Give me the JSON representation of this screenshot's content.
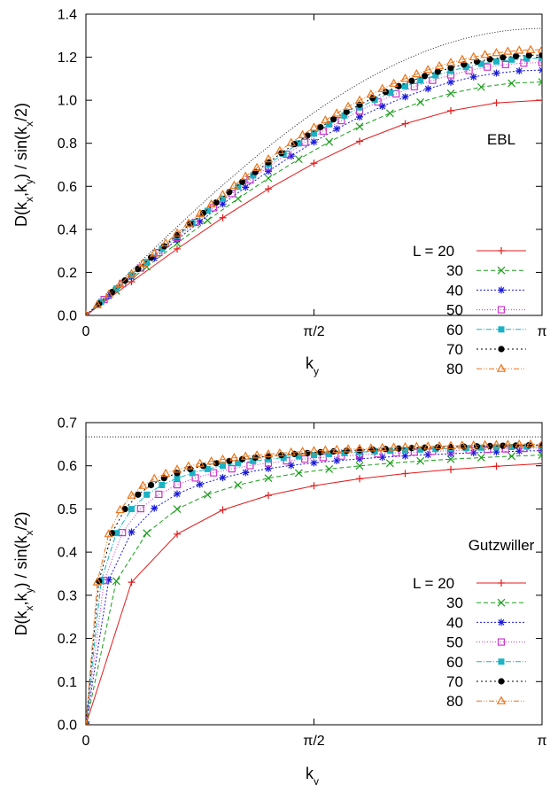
{
  "chart_data": [
    {
      "type": "line",
      "annotation": "EBL",
      "ylabel": "D(k_x,k_y) / sin(k_x/2)",
      "xlabel": "k_y",
      "xticks": [
        "0",
        "π/2",
        "π"
      ],
      "yticks": [
        "0.0",
        "0.2",
        "0.4",
        "0.6",
        "0.8",
        "1.0",
        "1.2",
        "1.4"
      ],
      "xlim": [
        0,
        3.14159
      ],
      "ylim": [
        0,
        1.4
      ],
      "reference": {
        "style": "dotted",
        "color": "#000000",
        "curve": "(4/3) sin(k_y/2)"
      },
      "series": [
        {
          "name": "L = 20",
          "L": 20,
          "color": "#e41a1c",
          "marker": "plus",
          "dash": "",
          "vmax": 1.0
        },
        {
          "name": "30",
          "L": 30,
          "color": "#1a9e1a",
          "marker": "x",
          "dash": "5,3",
          "vmax": 1.085
        },
        {
          "name": "40",
          "L": 40,
          "color": "#1a1ad9",
          "marker": "star",
          "dash": "2,2",
          "vmax": 1.14
        },
        {
          "name": "50",
          "L": 50,
          "color": "#cc33cc",
          "marker": "square",
          "dash": "1,2",
          "vmax": 1.175
        },
        {
          "name": "60",
          "L": 60,
          "color": "#1ab3c4",
          "marker": "filled-square",
          "dash": "6,2,1,2",
          "vmax": 1.195
        },
        {
          "name": "70",
          "L": 70,
          "color": "#000000",
          "marker": "filled-circle",
          "dash": "2,3",
          "vmax": 1.21
        },
        {
          "name": "80",
          "L": 80,
          "color": "#e8741a",
          "marker": "triangle",
          "dash": "6,2,1,2,1,2",
          "vmax": 1.235
        }
      ]
    },
    {
      "type": "line",
      "annotation": "Gutzwiller",
      "ylabel": "D(k_x,k_y) / sin(k_x/2)",
      "xlabel": "k_y",
      "xticks": [
        "0",
        "π/2",
        "π"
      ],
      "yticks": [
        "0.0",
        "0.1",
        "0.2",
        "0.3",
        "0.4",
        "0.5",
        "0.6",
        "0.7"
      ],
      "xlim": [
        0,
        3.14159
      ],
      "ylim": [
        0,
        0.7
      ],
      "reference": {
        "style": "dotted",
        "color": "#000000",
        "value": 0.667
      },
      "series": [
        {
          "name": "L = 20",
          "L": 20,
          "color": "#e41a1c",
          "marker": "plus",
          "dash": "",
          "a": 0.6667,
          "b": 0.32
        },
        {
          "name": "30",
          "L": 30,
          "color": "#1a9e1a",
          "marker": "x",
          "dash": "5,3",
          "a": 0.6667,
          "b": 0.21
        },
        {
          "name": "40",
          "L": 40,
          "color": "#1a1ad9",
          "marker": "star",
          "dash": "2,2",
          "a": 0.6667,
          "b": 0.155
        },
        {
          "name": "50",
          "L": 50,
          "color": "#cc33cc",
          "marker": "square",
          "dash": "1,2",
          "a": 0.6667,
          "b": 0.125
        },
        {
          "name": "60",
          "L": 60,
          "color": "#1ab3c4",
          "marker": "filled-square",
          "dash": "6,2,1,2",
          "a": 0.6667,
          "b": 0.105
        },
        {
          "name": "70",
          "L": 70,
          "color": "#000000",
          "marker": "filled-circle",
          "dash": "2,3",
          "a": 0.6667,
          "b": 0.09
        },
        {
          "name": "80",
          "L": 80,
          "color": "#e8741a",
          "marker": "triangle",
          "dash": "6,2,1,2,1,2",
          "a": 0.6667,
          "b": 0.08
        }
      ]
    }
  ]
}
